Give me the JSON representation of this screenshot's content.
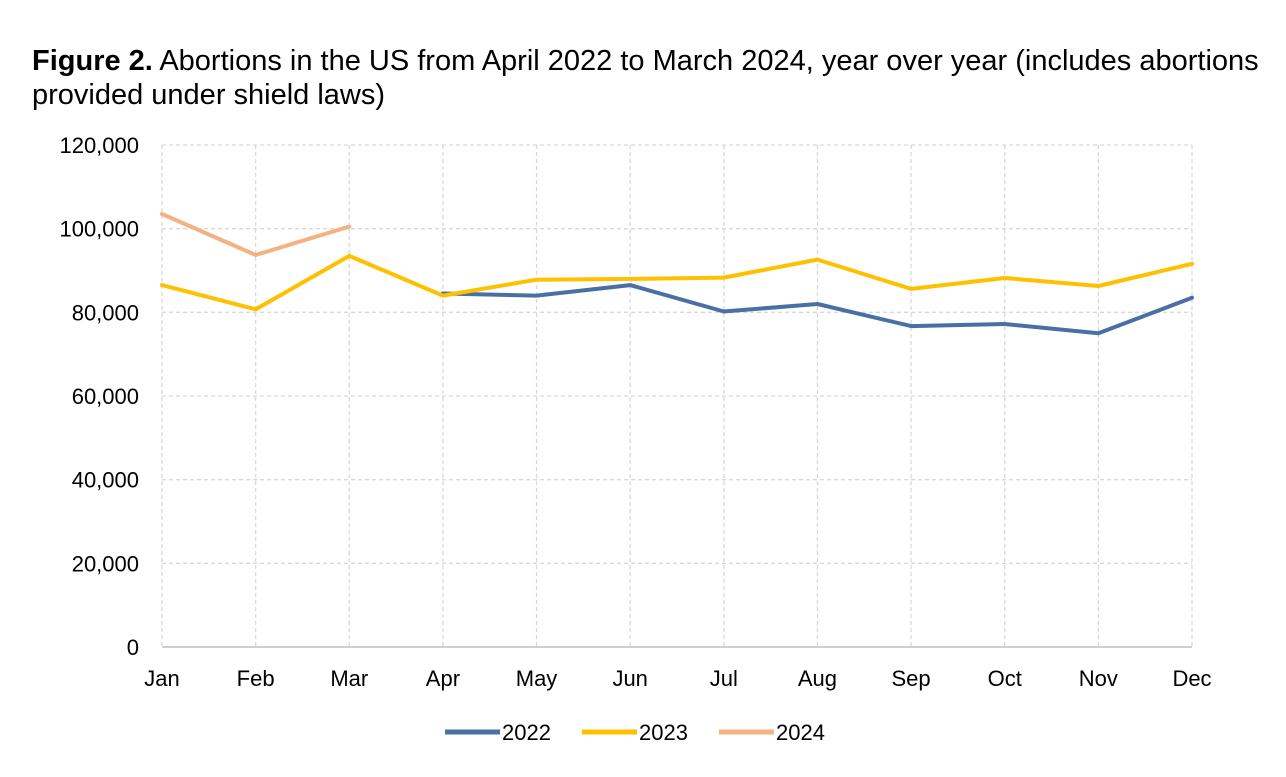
{
  "title_bold": "Figure 2.",
  "title_rest": "Abortions in the US from April 2022 to March 2024, year over year (includes abortions provided under shield laws)",
  "chart_data": {
    "type": "line",
    "title": "Figure 2. Abortions in the US from April 2022 to March 2024, year over year (includes abortions provided under shield laws)",
    "x": [
      "Jan",
      "Feb",
      "Mar",
      "Apr",
      "May",
      "Jun",
      "Jul",
      "Aug",
      "Sep",
      "Oct",
      "Nov",
      "Dec"
    ],
    "ylim": [
      0,
      120000
    ],
    "yticks": [
      "0",
      "20,000",
      "40,000",
      "60,000",
      "80,000",
      "100,000",
      "120,000"
    ],
    "ytick_values": [
      0,
      20000,
      40000,
      60000,
      80000,
      100000,
      120000
    ],
    "grid": true,
    "legend_position": "bottom",
    "series": [
      {
        "name": "2022",
        "color": "#4a6fa5",
        "values": [
          null,
          null,
          null,
          84500,
          84000,
          86500,
          80200,
          82000,
          76700,
          77200,
          75000,
          83500
        ]
      },
      {
        "name": "2023",
        "color": "#ffc000",
        "values": [
          86500,
          80700,
          93500,
          84000,
          87800,
          88000,
          88300,
          92600,
          85600,
          88200,
          86300,
          91600
        ]
      },
      {
        "name": "2024",
        "color": "#f4b183",
        "values": [
          103500,
          93700,
          100500,
          null,
          null,
          null,
          null,
          null,
          null,
          null,
          null,
          null
        ]
      }
    ]
  }
}
